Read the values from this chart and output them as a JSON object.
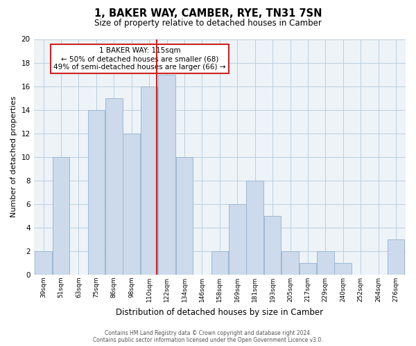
{
  "title": "1, BAKER WAY, CAMBER, RYE, TN31 7SN",
  "subtitle": "Size of property relative to detached houses in Camber",
  "xlabel": "Distribution of detached houses by size in Camber",
  "ylabel": "Number of detached properties",
  "bin_labels": [
    "39sqm",
    "51sqm",
    "63sqm",
    "75sqm",
    "86sqm",
    "98sqm",
    "110sqm",
    "122sqm",
    "134sqm",
    "146sqm",
    "158sqm",
    "169sqm",
    "181sqm",
    "193sqm",
    "205sqm",
    "217sqm",
    "229sqm",
    "240sqm",
    "252sqm",
    "264sqm",
    "276sqm"
  ],
  "bar_heights": [
    2,
    10,
    0,
    14,
    15,
    12,
    16,
    17,
    10,
    0,
    2,
    6,
    8,
    5,
    2,
    1,
    2,
    1,
    0,
    0,
    3
  ],
  "bar_color": "#ccdaeb",
  "bar_edge_color": "#9bb8d4",
  "grid_color": "#b8cfe0",
  "marker_label": "1 BAKER WAY: 115sqm",
  "annotation_line1": "← 50% of detached houses are smaller (68)",
  "annotation_line2": "49% of semi-detached houses are larger (66) →",
  "annotation_box_facecolor": "#ffffff",
  "annotation_box_edgecolor": "#cc2222",
  "marker_line_color": "#cc2222",
  "ylim": [
    0,
    20
  ],
  "yticks": [
    0,
    2,
    4,
    6,
    8,
    10,
    12,
    14,
    16,
    18,
    20
  ],
  "footer_line1": "Contains HM Land Registry data © Crown copyright and database right 2024.",
  "footer_line2": "Contains public sector information licensed under the Open Government Licence v3.0.",
  "bg_color": "#ffffff",
  "plot_bg_color": "#eef3f8"
}
